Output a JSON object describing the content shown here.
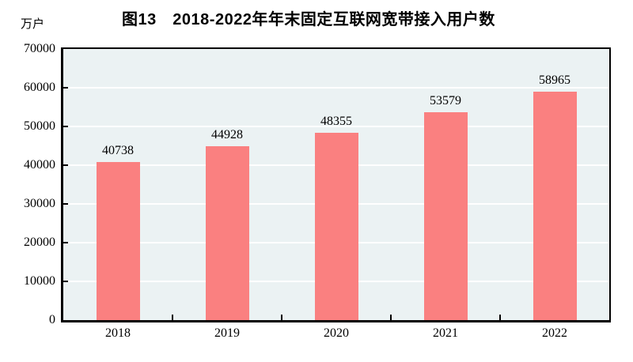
{
  "chart_data": {
    "type": "bar",
    "title": "图13　2018-2022年年末固定互联网宽带接入用户数",
    "unit_label": "万户",
    "categories": [
      "2018",
      "2019",
      "2020",
      "2021",
      "2022"
    ],
    "values": [
      40738,
      44928,
      48355,
      53579,
      58965
    ],
    "xlabel": "",
    "ylabel": "万户",
    "ylim": [
      0,
      70000
    ],
    "yticks": [
      0,
      10000,
      20000,
      30000,
      40000,
      50000,
      60000,
      70000
    ],
    "grid": "horizontal",
    "legend_position": "none",
    "bar_color": "#FA8080",
    "plot_background_color": "#EBF2F3",
    "grid_color": "#ffffff",
    "axis_color": "#000000",
    "text_color": "#000000"
  }
}
